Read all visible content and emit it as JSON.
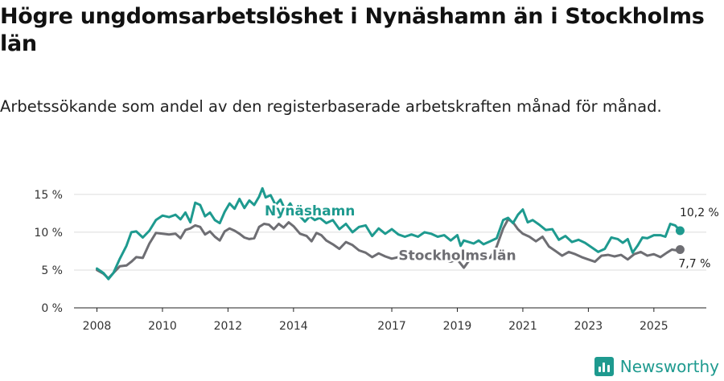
{
  "title": "Högre ungdomsarbetslöshet i Nynäshamn än i Stockholms län",
  "subtitle": "Arbetssökande som andel av den registerbaserade arbetskraften månad för månad.",
  "brand": {
    "name": "Newsworthy",
    "icon": "newsworthy-logo-icon"
  },
  "colors": {
    "nynashamn": "#1e9a8f",
    "stockholm": "#6e6e73"
  },
  "chart_data": {
    "type": "line",
    "ylim": [
      0,
      17
    ],
    "yticks": [
      0,
      5,
      10,
      15
    ],
    "ytick_labels": [
      "0 %",
      "5 %",
      "10 %",
      "15 %"
    ],
    "xlim": [
      2007.3,
      2026.6
    ],
    "xticks": [
      2008,
      2010,
      2012,
      2014,
      2017,
      2019,
      2021,
      2023,
      2025
    ],
    "xtick_labels": [
      "2008",
      "2010",
      "2012",
      "2014",
      "2017",
      "2019",
      "2021",
      "2023",
      "2025"
    ],
    "series": [
      {
        "name": "Nynäshamn",
        "label": "Nynäshamn",
        "end_label": "10,2 %",
        "points": [
          [
            2008.0,
            5.2
          ],
          [
            2008.2,
            4.6
          ],
          [
            2008.35,
            3.8
          ],
          [
            2008.5,
            4.6
          ],
          [
            2008.7,
            6.5
          ],
          [
            2008.9,
            8.2
          ],
          [
            2009.05,
            10.0
          ],
          [
            2009.2,
            10.1
          ],
          [
            2009.4,
            9.3
          ],
          [
            2009.6,
            10.2
          ],
          [
            2009.8,
            11.6
          ],
          [
            2010.0,
            12.2
          ],
          [
            2010.2,
            12.0
          ],
          [
            2010.4,
            12.3
          ],
          [
            2010.55,
            11.7
          ],
          [
            2010.7,
            12.6
          ],
          [
            2010.85,
            11.3
          ],
          [
            2011.0,
            13.9
          ],
          [
            2011.15,
            13.6
          ],
          [
            2011.3,
            12.1
          ],
          [
            2011.45,
            12.6
          ],
          [
            2011.6,
            11.6
          ],
          [
            2011.75,
            11.2
          ],
          [
            2011.9,
            12.7
          ],
          [
            2012.05,
            13.8
          ],
          [
            2012.2,
            13.1
          ],
          [
            2012.35,
            14.4
          ],
          [
            2012.5,
            13.2
          ],
          [
            2012.65,
            14.2
          ],
          [
            2012.8,
            13.6
          ],
          [
            2012.95,
            14.7
          ],
          [
            2013.05,
            15.8
          ],
          [
            2013.15,
            14.6
          ],
          [
            2013.3,
            14.9
          ],
          [
            2013.45,
            13.6
          ],
          [
            2013.6,
            14.3
          ],
          [
            2013.75,
            12.9
          ],
          [
            2013.9,
            13.8
          ],
          [
            2014.05,
            12.6
          ],
          [
            2014.2,
            12.1
          ],
          [
            2014.35,
            11.4
          ],
          [
            2014.5,
            12.1
          ],
          [
            2014.65,
            11.6
          ],
          [
            2014.8,
            11.9
          ],
          [
            2015.0,
            11.2
          ],
          [
            2015.2,
            11.6
          ],
          [
            2015.4,
            10.4
          ],
          [
            2015.6,
            11.1
          ],
          [
            2015.8,
            10.0
          ],
          [
            2016.0,
            10.7
          ],
          [
            2016.2,
            10.9
          ],
          [
            2016.4,
            9.5
          ],
          [
            2016.6,
            10.5
          ],
          [
            2016.8,
            9.8
          ],
          [
            2017.0,
            10.4
          ],
          [
            2017.2,
            9.7
          ],
          [
            2017.4,
            9.4
          ],
          [
            2017.6,
            9.7
          ],
          [
            2017.8,
            9.4
          ],
          [
            2018.0,
            10.0
          ],
          [
            2018.2,
            9.8
          ],
          [
            2018.4,
            9.4
          ],
          [
            2018.6,
            9.6
          ],
          [
            2018.8,
            8.9
          ],
          [
            2019.0,
            9.6
          ],
          [
            2019.1,
            8.2
          ],
          [
            2019.2,
            8.9
          ],
          [
            2019.35,
            8.7
          ],
          [
            2019.5,
            8.5
          ],
          [
            2019.65,
            8.9
          ],
          [
            2019.8,
            8.4
          ],
          [
            2020.0,
            8.8
          ],
          [
            2020.2,
            9.2
          ],
          [
            2020.4,
            11.6
          ],
          [
            2020.55,
            11.9
          ],
          [
            2020.7,
            11.2
          ],
          [
            2020.85,
            12.3
          ],
          [
            2021.0,
            13.0
          ],
          [
            2021.15,
            11.3
          ],
          [
            2021.3,
            11.6
          ],
          [
            2021.5,
            11.0
          ],
          [
            2021.7,
            10.3
          ],
          [
            2021.9,
            10.4
          ],
          [
            2022.1,
            9.0
          ],
          [
            2022.3,
            9.5
          ],
          [
            2022.5,
            8.7
          ],
          [
            2022.7,
            9.0
          ],
          [
            2022.9,
            8.6
          ],
          [
            2023.1,
            8.0
          ],
          [
            2023.3,
            7.4
          ],
          [
            2023.5,
            7.8
          ],
          [
            2023.7,
            9.3
          ],
          [
            2023.9,
            9.1
          ],
          [
            2024.05,
            8.6
          ],
          [
            2024.2,
            9.1
          ],
          [
            2024.35,
            7.3
          ],
          [
            2024.5,
            8.2
          ],
          [
            2024.65,
            9.3
          ],
          [
            2024.8,
            9.2
          ],
          [
            2025.0,
            9.6
          ],
          [
            2025.2,
            9.6
          ],
          [
            2025.35,
            9.4
          ],
          [
            2025.5,
            11.1
          ],
          [
            2025.65,
            10.9
          ],
          [
            2025.8,
            10.2
          ]
        ]
      },
      {
        "name": "Stockholms län",
        "label": "Stockholms län",
        "end_label": "7,7 %",
        "points": [
          [
            2008.0,
            5.0
          ],
          [
            2008.2,
            4.5
          ],
          [
            2008.35,
            3.9
          ],
          [
            2008.5,
            4.6
          ],
          [
            2008.7,
            5.5
          ],
          [
            2008.9,
            5.6
          ],
          [
            2009.05,
            6.1
          ],
          [
            2009.2,
            6.7
          ],
          [
            2009.4,
            6.6
          ],
          [
            2009.6,
            8.5
          ],
          [
            2009.8,
            9.9
          ],
          [
            2010.0,
            9.8
          ],
          [
            2010.2,
            9.7
          ],
          [
            2010.4,
            9.8
          ],
          [
            2010.55,
            9.2
          ],
          [
            2010.7,
            10.3
          ],
          [
            2010.85,
            10.5
          ],
          [
            2011.0,
            10.9
          ],
          [
            2011.15,
            10.7
          ],
          [
            2011.3,
            9.7
          ],
          [
            2011.45,
            10.1
          ],
          [
            2011.6,
            9.4
          ],
          [
            2011.75,
            8.9
          ],
          [
            2011.9,
            10.1
          ],
          [
            2012.05,
            10.5
          ],
          [
            2012.2,
            10.2
          ],
          [
            2012.35,
            9.8
          ],
          [
            2012.5,
            9.3
          ],
          [
            2012.65,
            9.1
          ],
          [
            2012.8,
            9.2
          ],
          [
            2012.95,
            10.7
          ],
          [
            2013.1,
            11.1
          ],
          [
            2013.25,
            11.0
          ],
          [
            2013.4,
            10.4
          ],
          [
            2013.55,
            11.1
          ],
          [
            2013.7,
            10.6
          ],
          [
            2013.85,
            11.3
          ],
          [
            2014.0,
            10.8
          ],
          [
            2014.2,
            9.8
          ],
          [
            2014.4,
            9.5
          ],
          [
            2014.55,
            8.8
          ],
          [
            2014.7,
            9.9
          ],
          [
            2014.85,
            9.6
          ],
          [
            2015.0,
            8.9
          ],
          [
            2015.2,
            8.4
          ],
          [
            2015.4,
            7.8
          ],
          [
            2015.6,
            8.7
          ],
          [
            2015.8,
            8.3
          ],
          [
            2016.0,
            7.6
          ],
          [
            2016.2,
            7.3
          ],
          [
            2016.4,
            6.7
          ],
          [
            2016.6,
            7.2
          ],
          [
            2016.8,
            6.8
          ],
          [
            2017.0,
            6.5
          ],
          [
            2017.2,
            6.7
          ],
          [
            2017.4,
            6.3
          ],
          [
            2017.6,
            6.8
          ],
          [
            2017.8,
            7.0
          ],
          [
            2018.0,
            7.0
          ],
          [
            2018.2,
            6.6
          ],
          [
            2018.4,
            6.5
          ],
          [
            2018.6,
            6.4
          ],
          [
            2018.8,
            6.1
          ],
          [
            2019.0,
            6.4
          ],
          [
            2019.2,
            5.3
          ],
          [
            2019.4,
            6.5
          ],
          [
            2019.6,
            6.7
          ],
          [
            2019.8,
            6.6
          ],
          [
            2020.0,
            6.6
          ],
          [
            2020.2,
            8.1
          ],
          [
            2020.4,
            10.5
          ],
          [
            2020.55,
            11.7
          ],
          [
            2020.7,
            11.3
          ],
          [
            2020.85,
            10.4
          ],
          [
            2021.0,
            9.8
          ],
          [
            2021.2,
            9.4
          ],
          [
            2021.4,
            8.8
          ],
          [
            2021.6,
            9.4
          ],
          [
            2021.8,
            8.1
          ],
          [
            2022.0,
            7.5
          ],
          [
            2022.2,
            6.9
          ],
          [
            2022.4,
            7.4
          ],
          [
            2022.6,
            7.1
          ],
          [
            2022.8,
            6.7
          ],
          [
            2023.0,
            6.4
          ],
          [
            2023.2,
            6.1
          ],
          [
            2023.4,
            6.9
          ],
          [
            2023.6,
            7.0
          ],
          [
            2023.8,
            6.8
          ],
          [
            2024.0,
            7.0
          ],
          [
            2024.2,
            6.4
          ],
          [
            2024.4,
            7.1
          ],
          [
            2024.6,
            7.4
          ],
          [
            2024.8,
            6.9
          ],
          [
            2025.0,
            7.1
          ],
          [
            2025.2,
            6.7
          ],
          [
            2025.4,
            7.3
          ],
          [
            2025.55,
            7.7
          ],
          [
            2025.7,
            7.6
          ],
          [
            2025.8,
            7.7
          ]
        ]
      }
    ]
  }
}
